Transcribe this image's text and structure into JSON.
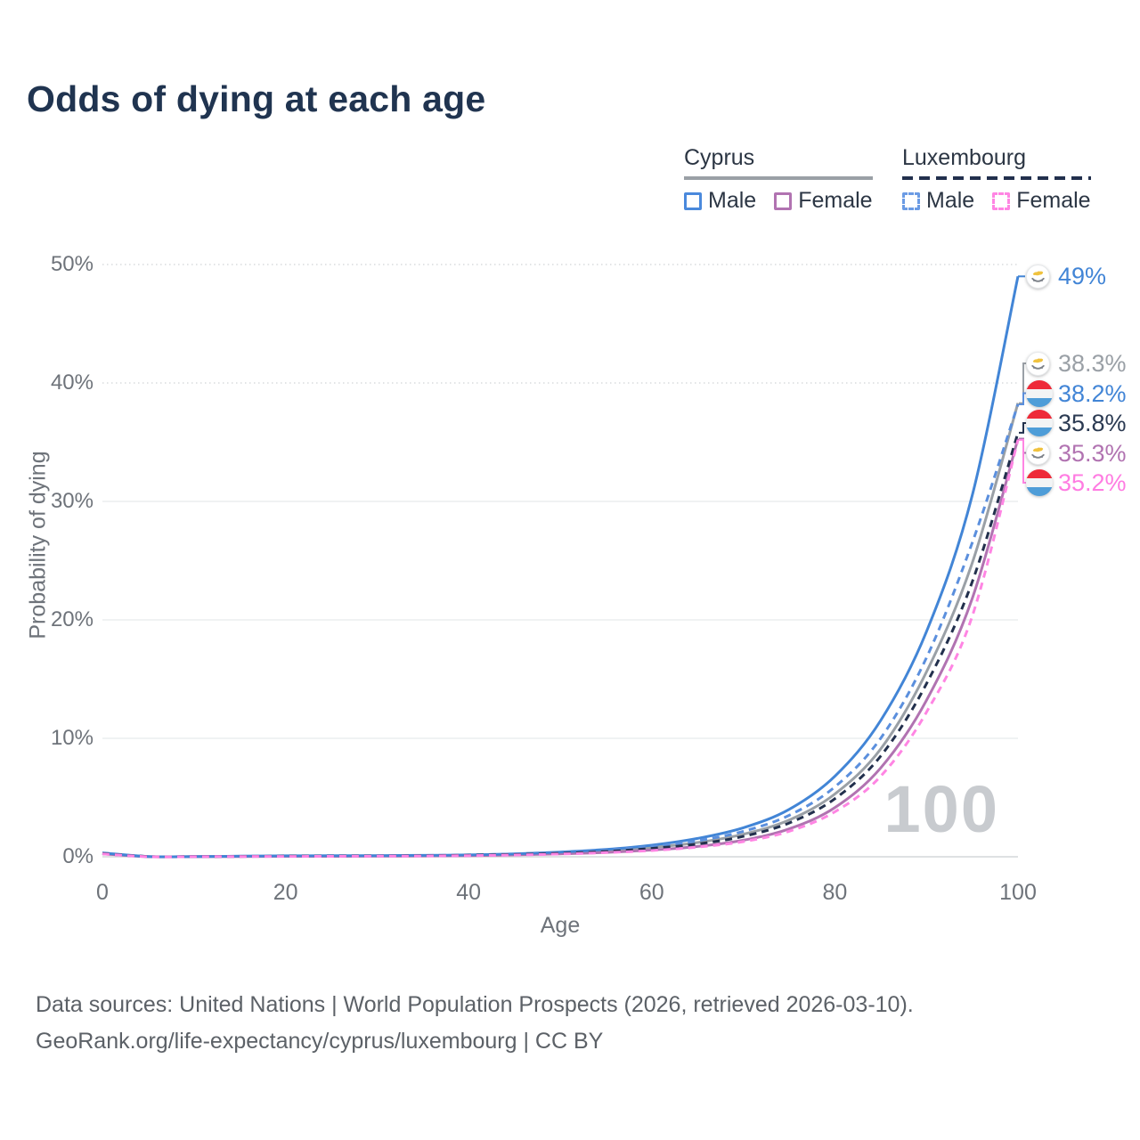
{
  "title": "Odds of dying at each age",
  "legend": {
    "cyprus": {
      "title": "Cyprus",
      "male": "Male",
      "female": "Female"
    },
    "luxembourg": {
      "title": "Luxembourg",
      "male": "Male",
      "female": "Female"
    }
  },
  "watermark": "100",
  "footer": {
    "line1": "Data sources: United Nations | World Population Prospects (2026, retrieved 2026-03-10).",
    "line2": "GeoRank.org/life-expectancy/cyprus/luxembourg | CC BY"
  },
  "colors": {
    "title_text": "#203450",
    "axis_text": "#6e737a",
    "grid_solid": "#ebedef",
    "grid_dotted": "#d8dbde",
    "axis_line": "#d4d7da",
    "watermark": "#c8cbcf",
    "footer_text": "#5c6167",
    "cyprus_male": "#4285d6",
    "cyprus_total": "#9aa0a6",
    "cyprus_female": "#b173b1",
    "luxembourg_male": "#5b8fdd",
    "luxembourg_total": "#22304d",
    "luxembourg_female": "#ff85e3"
  },
  "chart_data": {
    "type": "line",
    "title": "Odds of dying at each age",
    "xlabel": "Age",
    "ylabel": "Probability of dying",
    "xlim": [
      0,
      100
    ],
    "ylim_percent": [
      0,
      50
    ],
    "x_ticks": [
      0,
      20,
      40,
      60,
      80,
      100
    ],
    "y_ticks_percent": [
      0,
      10,
      20,
      30,
      40,
      50
    ],
    "grid": "horizontal-only",
    "legend_position": "top-right",
    "ages": [
      0,
      5,
      10,
      15,
      20,
      25,
      30,
      35,
      40,
      45,
      50,
      55,
      60,
      65,
      70,
      75,
      80,
      85,
      90,
      95,
      100
    ],
    "series": [
      {
        "id": "cyprus_total",
        "name": "Cyprus — both sexes",
        "country": "Cyprus",
        "sex": "Total",
        "color": "#9aa0a6",
        "label_color": "#9aa0a6",
        "dash": "solid",
        "flag": "cyprus",
        "end_label": "38.3%",
        "values": [
          0.28,
          0.02,
          0.02,
          0.04,
          0.06,
          0.07,
          0.08,
          0.1,
          0.13,
          0.2,
          0.32,
          0.49,
          0.78,
          1.2,
          1.9,
          3.1,
          5.3,
          9.1,
          15.6,
          24.8,
          38.3
        ]
      },
      {
        "id": "cyprus_female",
        "name": "Cyprus Female",
        "country": "Cyprus",
        "sex": "Female",
        "color": "#b173b1",
        "label_color": "#b173b1",
        "dash": "solid",
        "flag": "cyprus",
        "end_label": "35.3%",
        "values": [
          0.25,
          0.01,
          0.01,
          0.02,
          0.04,
          0.04,
          0.05,
          0.07,
          0.1,
          0.16,
          0.25,
          0.37,
          0.57,
          0.87,
          1.4,
          2.35,
          4.15,
          7.5,
          13.2,
          21.8,
          35.3
        ]
      },
      {
        "id": "cyprus_male",
        "name": "Cyprus Male",
        "country": "Cyprus",
        "sex": "Male",
        "color": "#4285d6",
        "label_color": "#4285d6",
        "dash": "solid",
        "flag": "cyprus",
        "end_label": "49%",
        "values": [
          0.33,
          0.02,
          0.02,
          0.05,
          0.08,
          0.09,
          0.1,
          0.12,
          0.16,
          0.25,
          0.4,
          0.62,
          0.98,
          1.55,
          2.45,
          4.0,
          6.8,
          11.5,
          19.0,
          30.5,
          49.0
        ]
      },
      {
        "id": "luxembourg_male",
        "name": "Luxembourg Male",
        "country": "Luxembourg",
        "sex": "Male",
        "color": "#5b8fdd",
        "label_color": "#4285d6",
        "dash": "dashed",
        "flag": "luxembourg",
        "end_label": "38.2%",
        "values": [
          0.3,
          0.02,
          0.02,
          0.04,
          0.07,
          0.08,
          0.09,
          0.11,
          0.16,
          0.24,
          0.37,
          0.56,
          0.88,
          1.35,
          2.15,
          3.5,
          5.9,
          10.0,
          16.8,
          26.5,
          38.2
        ]
      },
      {
        "id": "luxembourg_total",
        "name": "Luxembourg — both sexes",
        "country": "Luxembourg",
        "sex": "Total",
        "color": "#22304d",
        "label_color": "#2b3a52",
        "dash": "dashed",
        "flag": "luxembourg",
        "end_label": "35.8%",
        "values": [
          0.27,
          0.02,
          0.02,
          0.03,
          0.05,
          0.06,
          0.07,
          0.09,
          0.13,
          0.19,
          0.29,
          0.45,
          0.71,
          1.08,
          1.72,
          2.85,
          4.9,
          8.5,
          14.6,
          23.2,
          35.8
        ]
      },
      {
        "id": "luxembourg_female",
        "name": "Luxembourg Female",
        "country": "Luxembourg",
        "sex": "Female",
        "color": "#ff85e3",
        "label_color": "#ff7ce2",
        "dash": "dashed",
        "flag": "luxembourg",
        "end_label": "35.2%",
        "values": [
          0.24,
          0.01,
          0.01,
          0.02,
          0.03,
          0.04,
          0.05,
          0.07,
          0.1,
          0.15,
          0.23,
          0.35,
          0.53,
          0.82,
          1.28,
          2.15,
          3.8,
          6.8,
          12.2,
          20.3,
          35.2
        ]
      }
    ]
  }
}
